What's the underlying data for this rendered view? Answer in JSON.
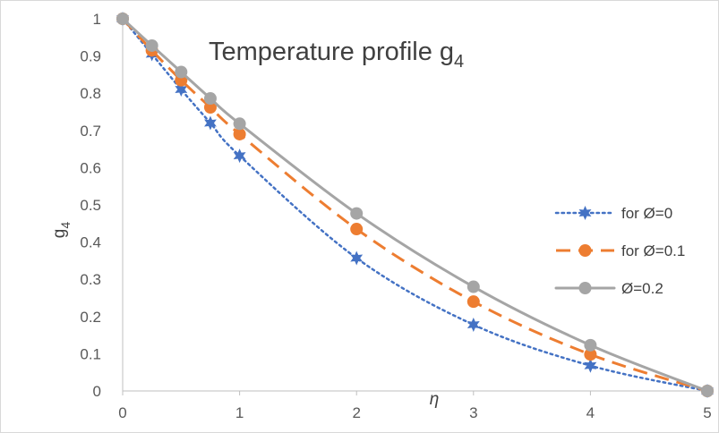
{
  "chart_data": {
    "type": "line",
    "title": "Temperature profile g",
    "title_subscript": "4",
    "xlabel": "η",
    "ylabel": "g",
    "ylabel_subscript": "4",
    "xlim": [
      0,
      5
    ],
    "ylim": [
      0,
      1
    ],
    "x_ticks": [
      "0",
      "1",
      "2",
      "3",
      "4",
      "5"
    ],
    "y_ticks": [
      "0",
      "0.1",
      "0.2",
      "0.3",
      "0.4",
      "0.5",
      "0.6",
      "0.7",
      "0.8",
      "0.9",
      "1"
    ],
    "grid": false,
    "legend_position": "right",
    "series": [
      {
        "name": "for Ø=0",
        "color": "#4472c4",
        "style": "dotted",
        "marker": "star",
        "x": [
          0,
          0.25,
          0.5,
          0.75,
          1,
          2,
          3,
          4,
          5
        ],
        "y": [
          1,
          0.905,
          0.81,
          0.72,
          0.632,
          0.357,
          0.178,
          0.068,
          0
        ]
      },
      {
        "name": "for Ø=0.1",
        "color": "#ed7d31",
        "style": "dashed",
        "marker": "circle",
        "x": [
          0,
          0.25,
          0.5,
          0.75,
          1,
          2,
          3,
          4,
          5
        ],
        "y": [
          1,
          0.915,
          0.835,
          0.762,
          0.69,
          0.435,
          0.24,
          0.098,
          0
        ]
      },
      {
        "name": "Ø=0.2",
        "color": "#a5a5a5",
        "style": "solid",
        "marker": "circle",
        "x": [
          0,
          0.25,
          0.5,
          0.75,
          1,
          2,
          3,
          4,
          5
        ],
        "y": [
          1,
          0.928,
          0.857,
          0.786,
          0.718,
          0.477,
          0.28,
          0.123,
          0
        ]
      }
    ]
  }
}
